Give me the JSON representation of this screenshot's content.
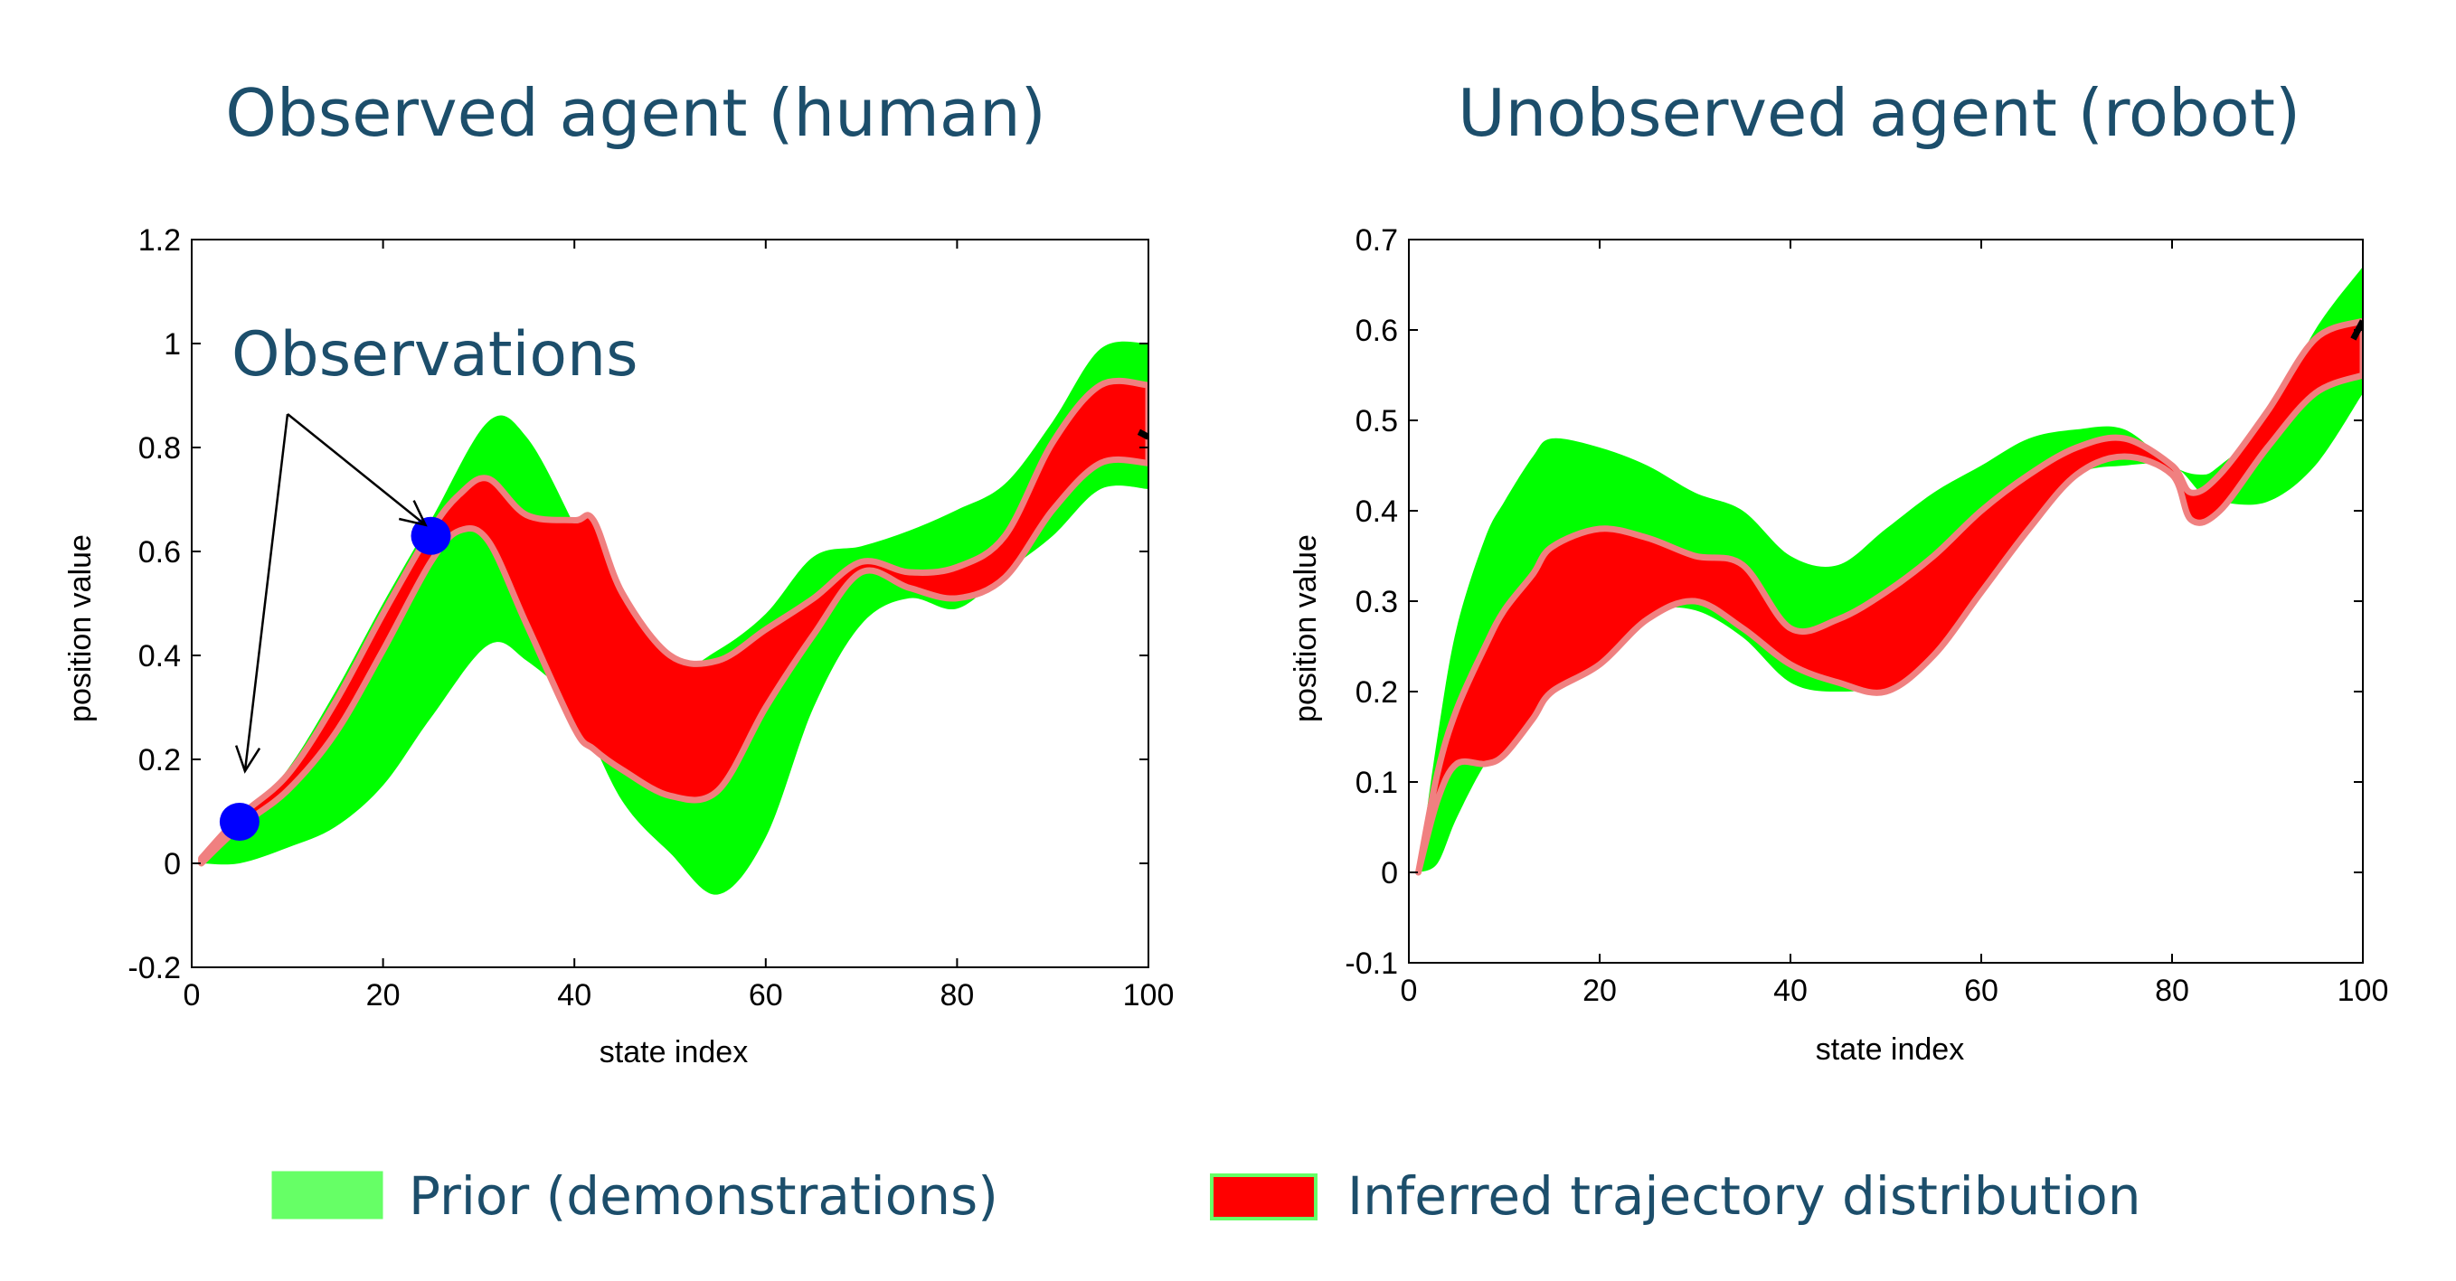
{
  "chart_data": [
    {
      "type": "area",
      "title": "Observed agent (human)",
      "xlabel": "state index",
      "ylabel": "position value",
      "xlim": [
        0,
        100
      ],
      "ylim": [
        -0.2,
        1.2
      ],
      "xticks": [
        0,
        20,
        40,
        60,
        80,
        100
      ],
      "yticks": [
        -0.2,
        0,
        0.2,
        0.4,
        0.6,
        0.8,
        1,
        1.2
      ],
      "ytick_labels": [
        "-0.2",
        "0",
        "0.2",
        "0.4",
        "0.6",
        "0.8",
        "1",
        "1.2"
      ],
      "grid": false,
      "series": [
        {
          "name": "Prior (demonstrations)",
          "color": "#00ff00",
          "x": [
            1,
            5,
            10,
            15,
            20,
            25,
            31,
            35,
            40,
            45,
            50,
            55,
            60,
            65,
            70,
            75,
            80,
            85,
            90,
            95,
            100
          ],
          "upper": [
            0.01,
            0.08,
            0.18,
            0.33,
            0.5,
            0.66,
            0.85,
            0.82,
            0.65,
            0.45,
            0.37,
            0.41,
            0.48,
            0.59,
            0.61,
            0.64,
            0.68,
            0.73,
            0.85,
            0.99,
            1.0
          ],
          "lower": [
            0.0,
            0.0,
            0.03,
            0.07,
            0.15,
            0.28,
            0.42,
            0.39,
            0.3,
            0.12,
            0.02,
            -0.06,
            0.05,
            0.3,
            0.46,
            0.51,
            0.49,
            0.56,
            0.63,
            0.72,
            0.72
          ]
        },
        {
          "name": "Inferred trajectory distribution",
          "color": "#ff0000",
          "x": [
            1,
            5,
            10,
            15,
            20,
            25,
            28,
            31,
            35,
            40,
            42,
            45,
            50,
            55,
            60,
            65,
            70,
            75,
            80,
            85,
            90,
            95,
            100
          ],
          "upper": [
            0.01,
            0.09,
            0.17,
            0.31,
            0.48,
            0.64,
            0.71,
            0.74,
            0.67,
            0.66,
            0.66,
            0.52,
            0.4,
            0.39,
            0.45,
            0.51,
            0.58,
            0.56,
            0.57,
            0.63,
            0.81,
            0.92,
            0.92
          ],
          "lower": [
            0.0,
            0.07,
            0.14,
            0.25,
            0.41,
            0.58,
            0.64,
            0.62,
            0.46,
            0.26,
            0.22,
            0.18,
            0.13,
            0.14,
            0.3,
            0.44,
            0.56,
            0.53,
            0.51,
            0.55,
            0.68,
            0.77,
            0.77
          ]
        }
      ],
      "observations": {
        "label": "Observations",
        "points": [
          {
            "x": 5,
            "y": 0.08
          },
          {
            "x": 25,
            "y": 0.63
          }
        ],
        "color": "#0000ff"
      },
      "mean_tail": {
        "x": [
          99,
          100
        ],
        "y": [
          0.83,
          0.82
        ],
        "color": "#000000"
      }
    },
    {
      "type": "area",
      "title": "Unobserved agent (robot)",
      "xlabel": "state index",
      "ylabel": "position value",
      "xlim": [
        0,
        100
      ],
      "ylim": [
        -0.1,
        0.7
      ],
      "xticks": [
        0,
        20,
        40,
        60,
        80,
        100
      ],
      "yticks": [
        -0.1,
        0,
        0.1,
        0.2,
        0.3,
        0.4,
        0.5,
        0.6,
        0.7
      ],
      "ytick_labels": [
        "-0.1",
        "0",
        "0.1",
        "0.2",
        "0.3",
        "0.4",
        "0.5",
        "0.6",
        "0.7"
      ],
      "grid": false,
      "series": [
        {
          "name": "Prior (demonstrations)",
          "color": "#00ff00",
          "x": [
            1,
            3,
            5,
            8,
            10,
            13,
            15,
            20,
            25,
            30,
            35,
            40,
            45,
            50,
            55,
            60,
            65,
            70,
            75,
            80,
            83,
            85,
            90,
            95,
            100
          ],
          "upper": [
            0.0,
            0.15,
            0.27,
            0.37,
            0.41,
            0.46,
            0.48,
            0.47,
            0.45,
            0.42,
            0.4,
            0.35,
            0.34,
            0.38,
            0.42,
            0.45,
            0.48,
            0.49,
            0.49,
            0.45,
            0.44,
            0.45,
            0.5,
            0.6,
            0.67
          ],
          "lower": [
            0.0,
            0.01,
            0.06,
            0.12,
            0.14,
            0.2,
            0.22,
            0.27,
            0.29,
            0.29,
            0.26,
            0.21,
            0.2,
            0.21,
            0.26,
            0.32,
            0.39,
            0.44,
            0.45,
            0.45,
            0.42,
            0.41,
            0.41,
            0.45,
            0.53
          ]
        },
        {
          "name": "Inferred trajectory distribution",
          "color": "#ff0000",
          "x": [
            1,
            3,
            5,
            8,
            10,
            13,
            15,
            20,
            25,
            30,
            35,
            40,
            45,
            50,
            55,
            60,
            65,
            70,
            75,
            80,
            82,
            85,
            90,
            95,
            100
          ],
          "upper": [
            0.0,
            0.11,
            0.18,
            0.25,
            0.29,
            0.33,
            0.36,
            0.38,
            0.37,
            0.35,
            0.34,
            0.27,
            0.28,
            0.31,
            0.35,
            0.4,
            0.44,
            0.47,
            0.48,
            0.45,
            0.42,
            0.44,
            0.51,
            0.59,
            0.61
          ],
          "lower": [
            0.0,
            0.08,
            0.12,
            0.12,
            0.13,
            0.17,
            0.2,
            0.23,
            0.28,
            0.3,
            0.27,
            0.23,
            0.21,
            0.2,
            0.24,
            0.31,
            0.38,
            0.44,
            0.46,
            0.44,
            0.39,
            0.4,
            0.47,
            0.53,
            0.55
          ]
        }
      ],
      "mean_tail": {
        "x": [
          99,
          100
        ],
        "y": [
          0.59,
          0.61
        ],
        "color": "#000000"
      }
    }
  ],
  "legend": [
    {
      "label": "Prior (demonstrations)",
      "color": "#66ff66",
      "border": "#66ff66"
    },
    {
      "label": "Inferred trajectory distribution",
      "color": "#ff0000",
      "border": "#66ff66"
    }
  ],
  "band_edge_color": "#f08080"
}
